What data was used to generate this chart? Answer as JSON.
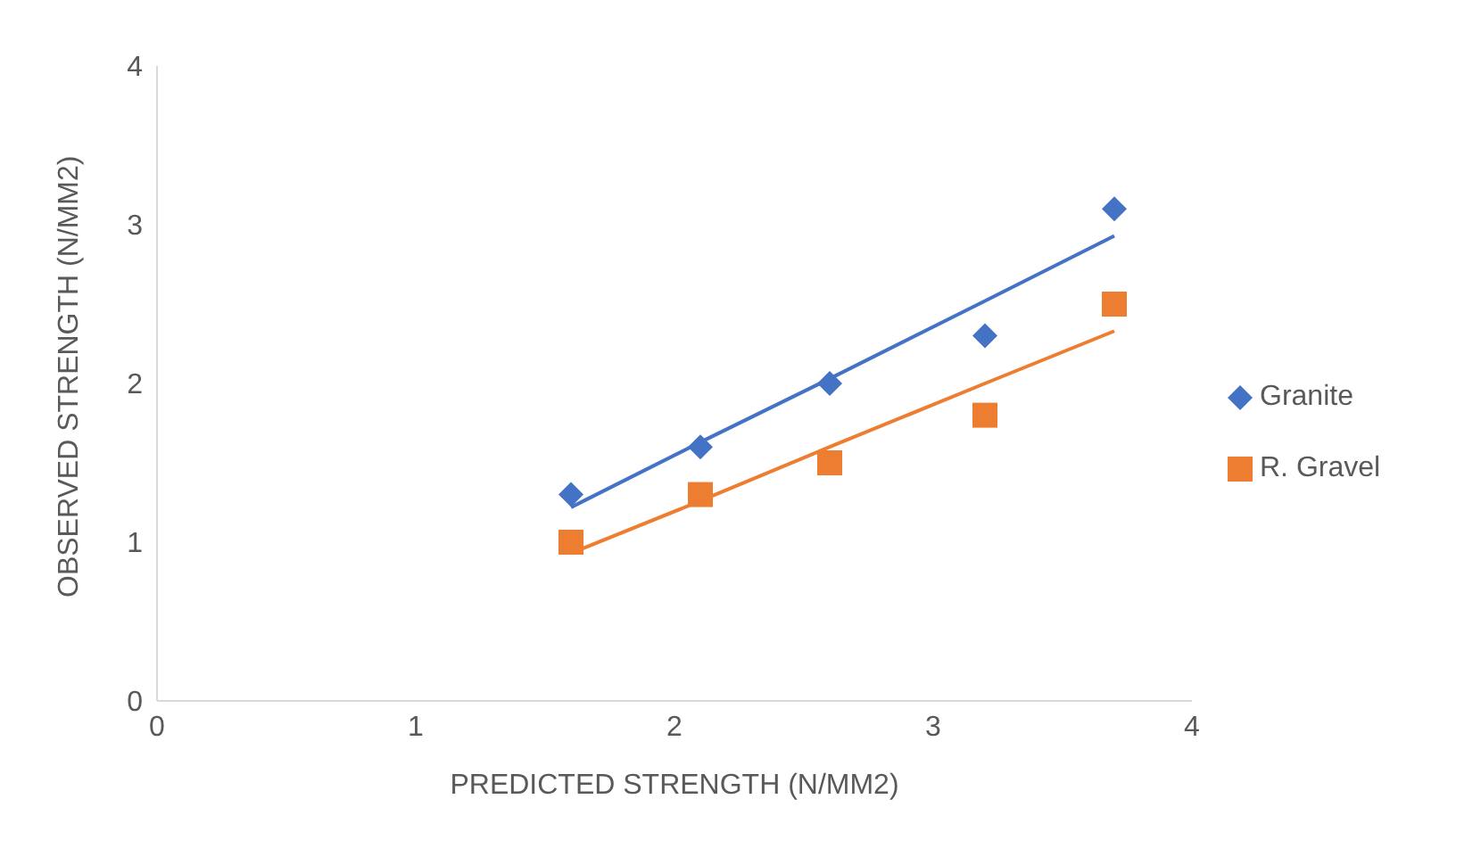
{
  "chart_data": {
    "type": "scatter",
    "xlabel": "PREDICTED STRENGTH (N/MM2)",
    "ylabel": "OBSERVED STRENGTH (N/MM2)",
    "x": [
      1.6,
      2.1,
      2.6,
      3.2,
      3.7
    ],
    "xlim": [
      0,
      4
    ],
    "xticks": [
      0,
      1,
      2,
      3,
      4
    ],
    "ylim": [
      0,
      4
    ],
    "yticks": [
      0,
      1,
      2,
      3,
      4
    ],
    "grid": false,
    "legend": "right",
    "series": [
      {
        "name": "Granite",
        "color": "#4472c4",
        "marker": "diamond",
        "values": [
          1.3,
          1.6,
          2.0,
          2.3,
          3.1
        ]
      },
      {
        "name": "R. Gravel",
        "color": "#ed7d31",
        "marker": "square",
        "values": [
          1.0,
          1.3,
          1.5,
          1.8,
          2.5
        ]
      },
      {
        "type": "line",
        "color": "#4472c4",
        "values": [
          1.22,
          1.63,
          2.03,
          2.52,
          2.93
        ]
      },
      {
        "type": "line",
        "color": "#ed7d31",
        "values": [
          0.93,
          1.26,
          1.6,
          2.0,
          2.33
        ]
      }
    ]
  }
}
